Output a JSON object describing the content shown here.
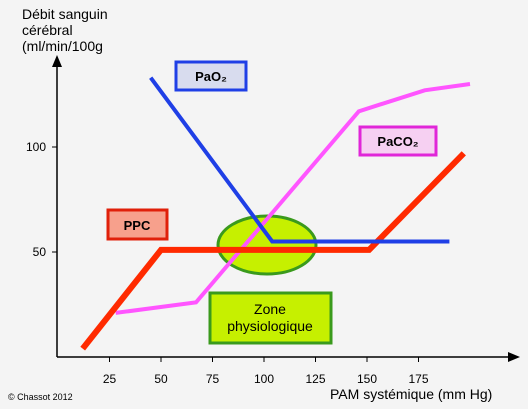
{
  "chart_data": {
    "type": "line",
    "ylabel_lines": [
      "Débit sanguin",
      "cérébral",
      "(ml/min/100g"
    ],
    "xlabel": "PAM systémique (mm Hg)",
    "x_ticks": [
      25,
      50,
      75,
      100,
      125,
      150,
      175
    ],
    "x_tick_labels": [
      "25",
      "50",
      "75",
      "100",
      "125",
      "150",
      "175"
    ],
    "y_ticks": [
      50,
      100
    ],
    "y_tick_labels": [
      "50",
      "100"
    ],
    "xlim": [
      0,
      200
    ],
    "ylim": [
      -50,
      145
    ],
    "grid": false,
    "series": [
      {
        "name": "PaO₂",
        "color": "#1f3fe6",
        "points": [
          [
            45,
            133
          ],
          [
            104,
            55
          ],
          [
            190,
            55
          ]
        ]
      },
      {
        "name": "PaCO₂",
        "color": "#ff55ff",
        "points": [
          [
            28,
            21
          ],
          [
            67,
            26
          ],
          [
            146,
            117
          ],
          [
            178,
            127
          ],
          [
            200,
            130
          ]
        ]
      },
      {
        "name": "PPC",
        "color": "#ff2a00",
        "points": [
          [
            12,
            4
          ],
          [
            50,
            51
          ],
          [
            151,
            51
          ],
          [
            197,
            97
          ]
        ]
      }
    ],
    "annotations": {
      "zone_label_lines": [
        "Zone",
        "physiologique"
      ],
      "copyright": "© Chassot 2012"
    }
  },
  "colors": {
    "background": "#f4f4f4",
    "axis": "#000000",
    "ellipse_fill": "#c6f000",
    "ellipse_stroke": "#3a9a1c",
    "zone_fill": "#c6f000",
    "zone_stroke": "#3a9a1c",
    "pao2_box_fill": "#d8dcee",
    "pao2_box_stroke": "#1f3fe6",
    "paco2_box_fill": "#f6d0f2",
    "paco2_box_stroke": "#e026d8",
    "ppc_box_fill": "#f7a08c",
    "ppc_box_stroke": "#e0200a"
  }
}
